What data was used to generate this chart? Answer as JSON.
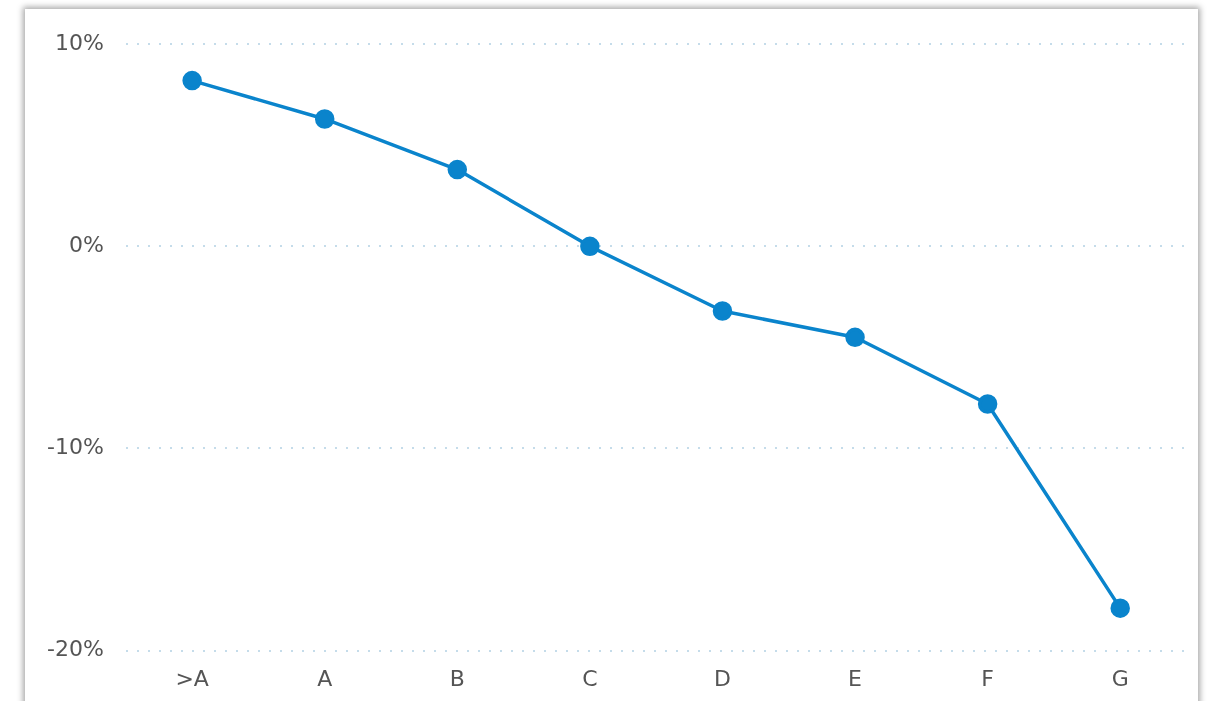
{
  "chart_data": {
    "type": "line",
    "categories": [
      ">A",
      "A",
      "B",
      "C",
      "D",
      "E",
      "F",
      "G"
    ],
    "series": [
      {
        "color": "#0a84cc",
        "values": [
          8.2,
          6.3,
          3.8,
          0,
          -3.2,
          -4.5,
          -7.8,
          -17.9
        ]
      }
    ],
    "ylim": [
      -20,
      10
    ],
    "yticks": [
      {
        "value": -20,
        "label": "-20%"
      },
      {
        "value": -10,
        "label": "-10%"
      },
      {
        "value": 0,
        "label": "0%"
      },
      {
        "value": 10,
        "label": "10%"
      }
    ],
    "grid": "y",
    "legend": false,
    "marker": "circle",
    "line_style": "solid"
  }
}
